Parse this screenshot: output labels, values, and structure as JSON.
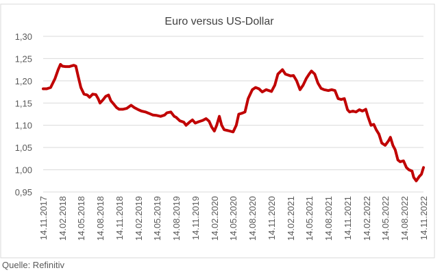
{
  "source_note": "Quelle: Refinitiv",
  "chart_data": {
    "type": "line",
    "title": "Euro versus US-Dollar",
    "xlabel": "",
    "ylabel": "",
    "ylim": [
      0.95,
      1.3
    ],
    "y_ticks": [
      "0,95",
      "1,00",
      "1,05",
      "1,10",
      "1,15",
      "1,20",
      "1,25",
      "1,30"
    ],
    "x_ticks": [
      "14.11.2017",
      "14.02.2018",
      "14.05.2018",
      "14.08.2018",
      "14.11.2018",
      "14.02.2019",
      "14.05.2019",
      "14.08.2019",
      "14.11.2019",
      "14.02.2020",
      "14.05.2020",
      "14.08.2020",
      "14.11.2020",
      "14.02.2021",
      "14.05.2021",
      "14.08.2021",
      "14.11.2021",
      "14.02.2022",
      "14.05.2022",
      "14.08.2022",
      "14.11.2022"
    ],
    "grid": "horizontal",
    "line_color": "#c00000",
    "series": [
      {
        "x": [
          "2017-11-14",
          "2017-12-01",
          "2017-12-20",
          "2018-01-10",
          "2018-01-25",
          "2018-02-05",
          "2018-02-14",
          "2018-03-01",
          "2018-03-20",
          "2018-04-10",
          "2018-04-20",
          "2018-05-01",
          "2018-05-14",
          "2018-05-29",
          "2018-06-14",
          "2018-06-25",
          "2018-07-10",
          "2018-07-25",
          "2018-08-05",
          "2018-08-14",
          "2018-08-28",
          "2018-09-10",
          "2018-09-24",
          "2018-10-05",
          "2018-10-20",
          "2018-11-01",
          "2018-11-14",
          "2018-12-01",
          "2018-12-20",
          "2019-01-10",
          "2019-01-25",
          "2019-02-14",
          "2019-03-01",
          "2019-03-20",
          "2019-04-05",
          "2019-04-25",
          "2019-05-14",
          "2019-06-01",
          "2019-06-20",
          "2019-07-01",
          "2019-07-20",
          "2019-08-05",
          "2019-08-14",
          "2019-09-01",
          "2019-09-20",
          "2019-10-01",
          "2019-10-20",
          "2019-11-01",
          "2019-11-14",
          "2019-12-01",
          "2019-12-20",
          "2020-01-05",
          "2020-01-20",
          "2020-02-01",
          "2020-02-14",
          "2020-02-25",
          "2020-03-09",
          "2020-03-20",
          "2020-04-01",
          "2020-04-20",
          "2020-05-14",
          "2020-05-29",
          "2020-06-10",
          "2020-06-25",
          "2020-07-10",
          "2020-07-25",
          "2020-08-14",
          "2020-08-30",
          "2020-09-15",
          "2020-10-01",
          "2020-10-20",
          "2020-11-14",
          "2020-11-30",
          "2020-12-15",
          "2021-01-06",
          "2021-01-20",
          "2021-02-14",
          "2021-02-28",
          "2021-03-15",
          "2021-03-31",
          "2021-04-15",
          "2021-04-30",
          "2021-05-14",
          "2021-05-25",
          "2021-06-10",
          "2021-06-25",
          "2021-07-10",
          "2021-07-25",
          "2021-08-14",
          "2021-08-30",
          "2021-09-15",
          "2021-09-30",
          "2021-10-15",
          "2021-10-30",
          "2021-11-14",
          "2021-11-24",
          "2021-12-10",
          "2021-12-25",
          "2022-01-10",
          "2022-01-25",
          "2022-02-10",
          "2022-02-20",
          "2022-03-07",
          "2022-03-20",
          "2022-04-01",
          "2022-04-14",
          "2022-04-28",
          "2022-05-14",
          "2022-05-30",
          "2022-06-08",
          "2022-06-20",
          "2022-07-01",
          "2022-07-14",
          "2022-07-25",
          "2022-08-10",
          "2022-08-24",
          "2022-09-05",
          "2022-09-20",
          "2022-09-28",
          "2022-10-10",
          "2022-10-25",
          "2022-11-04",
          "2022-11-14"
        ],
        "y": [
          1.182,
          1.182,
          1.185,
          1.205,
          1.225,
          1.237,
          1.233,
          1.232,
          1.232,
          1.235,
          1.233,
          1.21,
          1.185,
          1.17,
          1.168,
          1.163,
          1.17,
          1.169,
          1.16,
          1.15,
          1.157,
          1.165,
          1.168,
          1.155,
          1.147,
          1.14,
          1.136,
          1.136,
          1.138,
          1.145,
          1.14,
          1.135,
          1.132,
          1.13,
          1.127,
          1.123,
          1.122,
          1.12,
          1.123,
          1.128,
          1.13,
          1.12,
          1.118,
          1.11,
          1.107,
          1.1,
          1.108,
          1.112,
          1.105,
          1.108,
          1.111,
          1.115,
          1.109,
          1.096,
          1.087,
          1.1,
          1.12,
          1.1,
          1.09,
          1.088,
          1.085,
          1.1,
          1.125,
          1.127,
          1.13,
          1.16,
          1.18,
          1.185,
          1.182,
          1.175,
          1.18,
          1.176,
          1.19,
          1.215,
          1.225,
          1.215,
          1.211,
          1.212,
          1.2,
          1.18,
          1.19,
          1.205,
          1.215,
          1.222,
          1.215,
          1.195,
          1.183,
          1.18,
          1.178,
          1.18,
          1.178,
          1.16,
          1.158,
          1.16,
          1.135,
          1.13,
          1.132,
          1.13,
          1.135,
          1.132,
          1.136,
          1.12,
          1.1,
          1.102,
          1.09,
          1.08,
          1.06,
          1.055,
          1.065,
          1.073,
          1.055,
          1.045,
          1.022,
          1.018,
          1.02,
          1.005,
          1.0,
          0.997,
          0.983,
          0.975,
          0.985,
          0.99,
          1.005
        ]
      }
    ]
  }
}
